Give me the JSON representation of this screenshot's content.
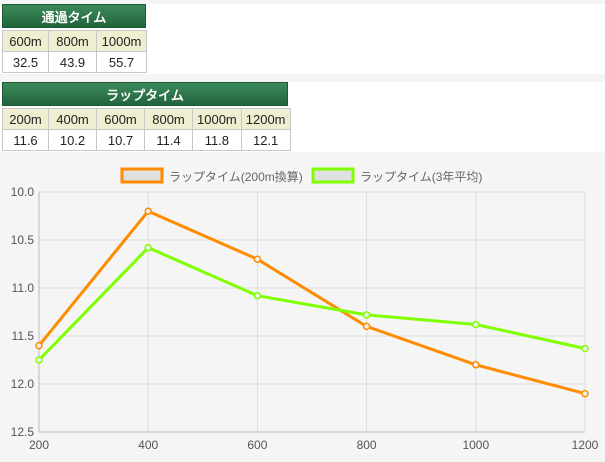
{
  "passing": {
    "title": "通過タイム",
    "headers": [
      "600m",
      "800m",
      "1000m"
    ],
    "values": [
      "32.5",
      "43.9",
      "55.7"
    ]
  },
  "lap": {
    "title": "ラップタイム",
    "headers": [
      "200m",
      "400m",
      "600m",
      "800m",
      "1000m",
      "1200m"
    ],
    "values": [
      "11.6",
      "10.2",
      "10.7",
      "11.4",
      "11.8",
      "12.1"
    ]
  },
  "chart_data": {
    "type": "line",
    "x": [
      200,
      400,
      600,
      800,
      1000,
      1200
    ],
    "x_tick_labels": [
      "200",
      "400",
      "600",
      "800",
      "1000",
      "1200"
    ],
    "y_tick_labels": [
      "10.0",
      "10.5",
      "11.0",
      "11.5",
      "12.0",
      "12.5"
    ],
    "ylim": [
      10.0,
      12.5
    ],
    "y_reversed": true,
    "grid": true,
    "legend": "top-center",
    "series": [
      {
        "name": "ラップタイム(200m換算)",
        "color": "#ff8c00",
        "values": [
          11.6,
          10.2,
          10.7,
          11.4,
          11.8,
          12.1
        ]
      },
      {
        "name": "ラップタイム(3年平均)",
        "color": "#80ff00",
        "values": [
          11.75,
          10.58,
          11.08,
          11.28,
          11.38,
          11.63
        ]
      }
    ]
  }
}
